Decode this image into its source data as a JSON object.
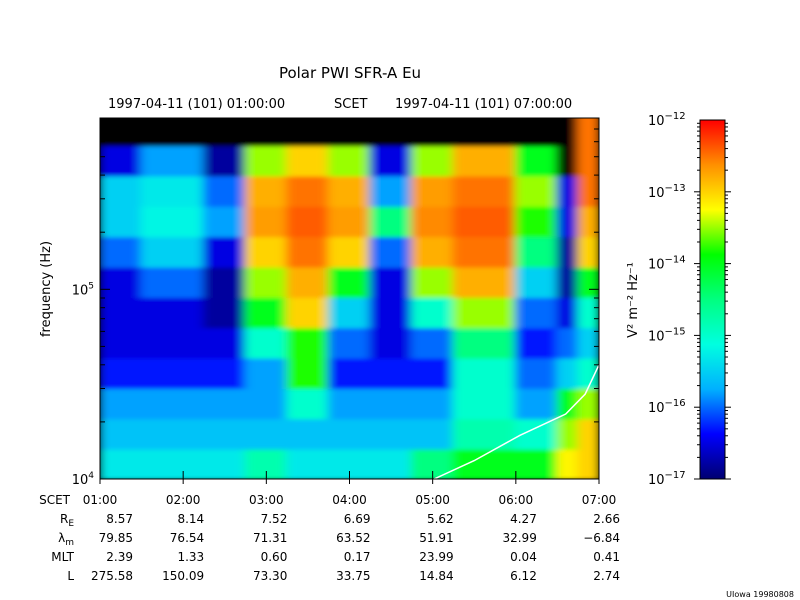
{
  "chart_data": {
    "type": "heatmap",
    "title": "Polar PWI SFR-A Eu",
    "header": {
      "start": "1997-04-11 (101) 01:00:00",
      "middle": "SCET",
      "end": "1997-04-11 (101) 07:00:00"
    },
    "ylabel": "frequency (Hz)",
    "yscale": "log",
    "ylim": [
      10000,
      800000
    ],
    "ytick_labels": [
      {
        "base": "10",
        "exp": "4",
        "value": 10000
      },
      {
        "base": "10",
        "exp": "5",
        "value": 100000
      }
    ],
    "xlim": [
      "01:00",
      "07:00"
    ],
    "x_edges": [
      "01:00",
      "01:30",
      "02:15",
      "02:45",
      "03:15",
      "03:45",
      "04:15",
      "04:45",
      "05:15",
      "06:00",
      "06:30",
      "06:45",
      "07:00"
    ],
    "y_log10_centers": [
      4.08,
      4.24,
      4.4,
      4.56,
      4.72,
      4.88,
      5.04,
      5.2,
      5.36,
      5.52,
      5.68,
      5.84
    ],
    "log10_intensity_rows_bottom_to_top": [
      [
        -15.3,
        -15.3,
        -15.3,
        -14.8,
        -15.3,
        -15.3,
        -15.3,
        -14.5,
        -14.0,
        -14.0,
        -13.2,
        -13.0
      ],
      [
        -15.6,
        -15.6,
        -15.6,
        -15.6,
        -15.6,
        -15.6,
        -15.6,
        -15.6,
        -14.8,
        -15.0,
        -13.5,
        -13.0
      ],
      [
        -15.8,
        -15.8,
        -15.8,
        -15.8,
        -15.0,
        -15.8,
        -15.8,
        -15.8,
        -15.0,
        -15.8,
        -14.0,
        -13.5
      ],
      [
        -16.3,
        -16.3,
        -16.3,
        -15.8,
        -13.8,
        -16.3,
        -16.3,
        -16.3,
        -15.0,
        -16.0,
        -15.5,
        -15.0
      ],
      [
        -16.5,
        -16.5,
        -16.5,
        -15.0,
        -13.8,
        -16.0,
        -16.5,
        -16.0,
        -14.5,
        -16.3,
        -16.0,
        -15.5
      ],
      [
        -16.5,
        -16.5,
        -16.8,
        -14.0,
        -13.0,
        -15.5,
        -16.5,
        -15.0,
        -13.5,
        -16.0,
        -16.5,
        -15.0
      ],
      [
        -16.5,
        -16.0,
        -16.8,
        -13.5,
        -12.8,
        -14.0,
        -16.5,
        -13.5,
        -12.8,
        -15.5,
        -16.8,
        -14.0
      ],
      [
        -16.0,
        -15.5,
        -16.5,
        -13.0,
        -12.5,
        -13.0,
        -16.0,
        -12.8,
        -12.5,
        -14.5,
        -16.8,
        -13.0
      ],
      [
        -15.5,
        -15.2,
        -15.8,
        -12.7,
        -12.4,
        -12.7,
        -14.5,
        -12.6,
        -12.4,
        -13.8,
        -16.5,
        -12.8
      ],
      [
        -15.5,
        -15.3,
        -16.0,
        -12.8,
        -12.5,
        -12.8,
        -15.8,
        -12.7,
        -12.5,
        -13.5,
        -16.5,
        -12.5
      ],
      [
        -16.5,
        -15.8,
        -16.8,
        -13.5,
        -13.0,
        -13.5,
        -16.5,
        -13.5,
        -12.8,
        -14.0,
        -17.0,
        -12.5
      ],
      [
        -17.0,
        -17.0,
        -17.0,
        -17.0,
        -17.0,
        -17.0,
        -17.0,
        -17.0,
        -17.0,
        -17.0,
        -17.0,
        -12.5
      ]
    ],
    "overlay_line": {
      "color": "#ffffff",
      "points": [
        [
          "05:01",
          10000
        ],
        [
          "05:30",
          12500
        ],
        [
          "06:03",
          17000
        ],
        [
          "06:36",
          22000
        ],
        [
          "06:50",
          28000
        ],
        [
          "07:00",
          40000
        ]
      ]
    },
    "colorbar": {
      "label": "V² m⁻² Hz⁻¹",
      "scale": "log",
      "range_log10": [
        -17,
        -12
      ],
      "ticks": [
        {
          "base": "10",
          "exp": "−12",
          "value": -12
        },
        {
          "base": "10",
          "exp": "−13",
          "value": -13
        },
        {
          "base": "10",
          "exp": "−14",
          "value": -14
        },
        {
          "base": "10",
          "exp": "−15",
          "value": -15
        },
        {
          "base": "10",
          "exp": "−16",
          "value": -16
        },
        {
          "base": "10",
          "exp": "−17",
          "value": -17
        }
      ],
      "colors": [
        "#000070",
        "#0000ff",
        "#00b0ff",
        "#00ffe0",
        "#00ff80",
        "#00ff00",
        "#ffff00",
        "#ff9000",
        "#ff0000"
      ]
    },
    "ephemeris": {
      "row_labels": [
        "SCET",
        "R",
        "λ",
        "MLT",
        "L"
      ],
      "row_label_subscripts": [
        "",
        "E",
        "m",
        "",
        ""
      ],
      "times": [
        "01:00",
        "02:00",
        "03:00",
        "04:00",
        "05:00",
        "06:00",
        "07:00"
      ],
      "rows": [
        [
          "8.57",
          "8.14",
          "7.52",
          "6.69",
          "5.62",
          "4.27",
          "2.66"
        ],
        [
          "79.85",
          "76.54",
          "71.31",
          "63.52",
          "51.91",
          "32.99",
          "−6.84"
        ],
        [
          "2.39",
          "1.33",
          "0.60",
          "0.17",
          "23.99",
          "0.04",
          "0.41"
        ],
        [
          "275.58",
          "150.09",
          "73.30",
          "33.75",
          "14.84",
          "6.12",
          "2.74"
        ]
      ]
    }
  },
  "footer": "UIowa 19980808"
}
